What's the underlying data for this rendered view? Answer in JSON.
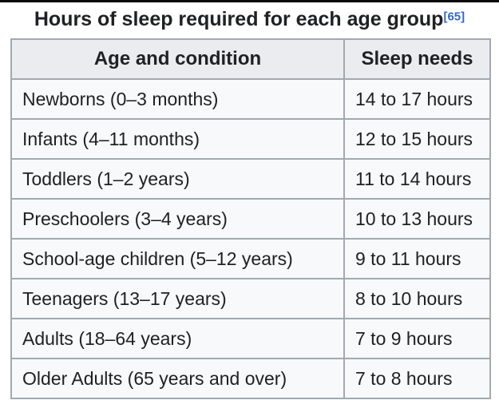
{
  "title": {
    "text": "Hours of sleep required for each age group",
    "citation": "[65]"
  },
  "chart_data": {
    "type": "table",
    "title": "Hours of sleep required for each age group",
    "citation_ref": "[65]",
    "columns": [
      "Age and condition",
      "Sleep needs"
    ],
    "rows": [
      [
        "Newborns (0–3 months)",
        "14 to 17 hours"
      ],
      [
        "Infants (4–11 months)",
        "12 to 15 hours"
      ],
      [
        "Toddlers (1–2 years)",
        "11 to 14 hours"
      ],
      [
        "Preschoolers (3–4 years)",
        "10 to 13 hours"
      ],
      [
        "School-age children (5–12 years)",
        "9 to 11 hours"
      ],
      [
        "Teenagers (13–17 years)",
        "8 to 10 hours"
      ],
      [
        "Adults (18–64 years)",
        "7 to 9 hours"
      ],
      [
        "Older Adults (65 years and over)",
        "7 to 8 hours"
      ]
    ],
    "layout": {
      "header_background": "#eaecf0",
      "row_background": "#f8f9fa",
      "border_color": "#a2a9b1",
      "text_color": "#202122",
      "link_color": "#3366cc"
    }
  }
}
